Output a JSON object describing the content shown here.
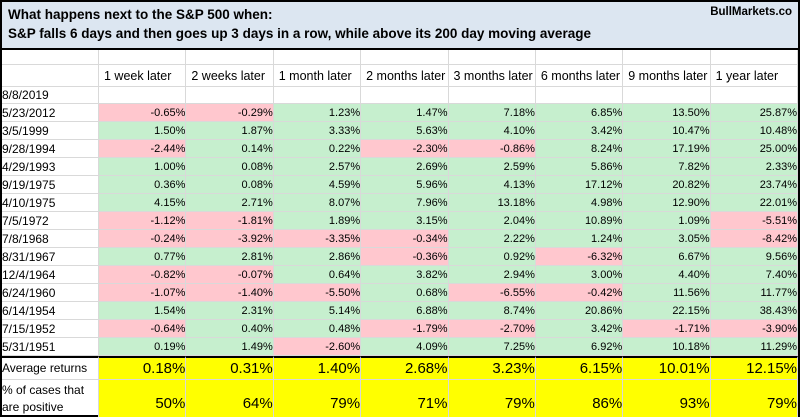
{
  "header": {
    "title_line1": "What happens next to the S&P 500 when:",
    "title_line2": "S&P falls 6 days and then goes up 3 days in a row, while above its 200 day moving average",
    "brand": "BullMarkets.co"
  },
  "chart_data": {
    "type": "table",
    "title": "What happens next to the S&P 500 when: S&P falls 6 days and then goes up 3 days in a row, while above its 200 day moving average",
    "columns": [
      "1 week later",
      "2 weeks later",
      "1 month later",
      "2 months later",
      "3 months later",
      "6 months later",
      "9 months later",
      "1 year later"
    ],
    "rows": [
      {
        "date": "8/8/2019",
        "values": []
      },
      {
        "date": "5/23/2012",
        "values": [
          "-0.65%",
          "-0.29%",
          "1.23%",
          "1.47%",
          "7.18%",
          "6.85%",
          "13.50%",
          "25.87%"
        ]
      },
      {
        "date": "3/5/1999",
        "values": [
          "1.50%",
          "1.87%",
          "3.33%",
          "5.63%",
          "4.10%",
          "3.42%",
          "10.47%",
          "10.48%"
        ]
      },
      {
        "date": "9/28/1994",
        "values": [
          "-2.44%",
          "0.14%",
          "0.22%",
          "-2.30%",
          "-0.86%",
          "8.24%",
          "17.19%",
          "25.00%"
        ]
      },
      {
        "date": "4/29/1993",
        "values": [
          "1.00%",
          "0.08%",
          "2.57%",
          "2.69%",
          "2.59%",
          "5.86%",
          "7.82%",
          "2.33%"
        ]
      },
      {
        "date": "9/19/1975",
        "values": [
          "0.36%",
          "0.08%",
          "4.59%",
          "5.96%",
          "4.13%",
          "17.12%",
          "20.82%",
          "23.74%"
        ]
      },
      {
        "date": "4/10/1975",
        "values": [
          "4.15%",
          "2.71%",
          "8.07%",
          "7.96%",
          "13.18%",
          "4.98%",
          "12.90%",
          "22.01%"
        ]
      },
      {
        "date": "7/5/1972",
        "values": [
          "-1.12%",
          "-1.81%",
          "1.89%",
          "3.15%",
          "2.04%",
          "10.89%",
          "1.09%",
          "-5.51%"
        ]
      },
      {
        "date": "7/8/1968",
        "values": [
          "-0.24%",
          "-3.92%",
          "-3.35%",
          "-0.34%",
          "2.22%",
          "1.24%",
          "3.05%",
          "-8.42%"
        ]
      },
      {
        "date": "8/31/1967",
        "values": [
          "0.77%",
          "2.81%",
          "2.86%",
          "-0.36%",
          "0.92%",
          "-6.32%",
          "6.67%",
          "9.56%"
        ]
      },
      {
        "date": "12/4/1964",
        "values": [
          "-0.82%",
          "-0.07%",
          "0.64%",
          "3.82%",
          "2.94%",
          "3.00%",
          "4.40%",
          "7.40%"
        ]
      },
      {
        "date": "6/24/1960",
        "values": [
          "-1.07%",
          "-1.40%",
          "-5.50%",
          "0.68%",
          "-6.55%",
          "-0.42%",
          "11.56%",
          "11.77%"
        ]
      },
      {
        "date": "6/14/1954",
        "values": [
          "1.54%",
          "2.31%",
          "5.14%",
          "6.88%",
          "8.74%",
          "20.86%",
          "22.15%",
          "38.43%"
        ]
      },
      {
        "date": "7/15/1952",
        "values": [
          "-0.64%",
          "0.40%",
          "0.48%",
          "-1.79%",
          "-2.70%",
          "3.42%",
          "-1.71%",
          "-3.90%"
        ]
      },
      {
        "date": "5/31/1951",
        "values": [
          "0.19%",
          "1.49%",
          "-2.60%",
          "4.09%",
          "7.25%",
          "6.92%",
          "10.18%",
          "11.29%"
        ]
      }
    ],
    "summary": {
      "average_label": "Average returns",
      "average_values": [
        "0.18%",
        "0.31%",
        "1.40%",
        "2.68%",
        "3.23%",
        "6.15%",
        "10.01%",
        "12.15%"
      ],
      "positive_label_lines": [
        "% of cases that",
        "are positive"
      ],
      "positive_values": [
        "50%",
        "64%",
        "79%",
        "71%",
        "79%",
        "86%",
        "93%",
        "79%"
      ]
    },
    "layout": {
      "grid": true,
      "negative_highlight": "pink",
      "positive_highlight": "green",
      "summary_highlight": "yellow"
    }
  },
  "colors": {
    "title_bg": "#dce6f1",
    "positive_bg": "#c6efce",
    "positive_text": "#1d7a2a",
    "negative_bg": "#ffc7ce",
    "negative_text": "#c00000",
    "summary_bg": "#ffff00",
    "gridline": "#d9d9d9",
    "border": "#000000"
  }
}
